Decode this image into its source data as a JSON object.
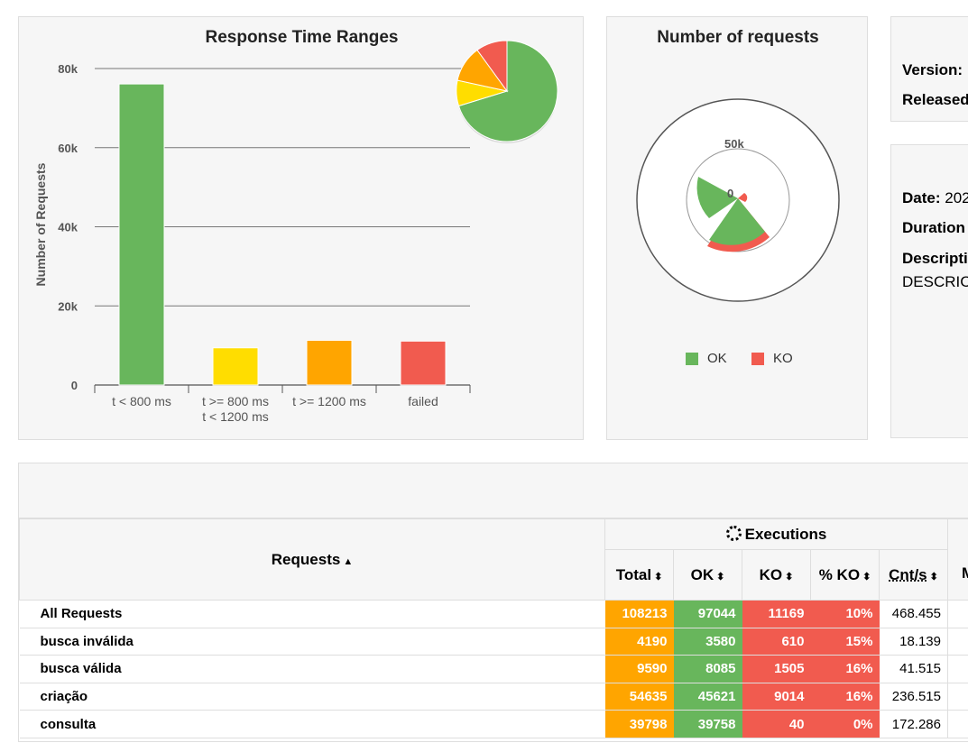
{
  "ranges_chart": {
    "title": "Response Time Ranges",
    "ylabel": "Number of Requests",
    "yticks": [
      "0",
      "20k",
      "40k",
      "60k",
      "80k"
    ],
    "categories": [
      {
        "line1": "t < 800 ms",
        "line2": ""
      },
      {
        "line1": "t >= 800 ms",
        "line2": "t < 1200 ms"
      },
      {
        "line1": "t >= 1200 ms",
        "line2": ""
      },
      {
        "line1": "failed",
        "line2": ""
      }
    ],
    "values": [
      76100,
      9400,
      11300,
      11100
    ],
    "colors": [
      "#68b65c",
      "#ffdd00",
      "#ffa500",
      "#f15b4f"
    ],
    "ylim": [
      0,
      80000
    ]
  },
  "requests_chart": {
    "title": "Number of requests",
    "ticks": [
      "0",
      "50k"
    ],
    "legend": [
      {
        "label": "OK",
        "color": "#68b65c"
      },
      {
        "label": "KO",
        "color": "#f15b4f"
      }
    ]
  },
  "info": {
    "version_label": "Version:",
    "released_label": "Released",
    "date_label": "Date:",
    "date_value": "202",
    "duration_label": "Duration",
    "description_label": "Descripti",
    "description_value": "DESCRIC"
  },
  "table": {
    "requests_header": "Requests",
    "executions_header": "Executions",
    "columns": [
      "Total",
      "OK",
      "KO",
      "% KO",
      "Cnt/s"
    ],
    "next_column": "M",
    "rows": [
      {
        "name": "All Requests",
        "total": "108213",
        "ok": "97044",
        "ko": "11169",
        "pko": "10%",
        "cnt": "468.455"
      },
      {
        "name": "busca inválida",
        "total": "4190",
        "ok": "3580",
        "ko": "610",
        "pko": "15%",
        "cnt": "18.139"
      },
      {
        "name": "busca válida",
        "total": "9590",
        "ok": "8085",
        "ko": "1505",
        "pko": "16%",
        "cnt": "41.515"
      },
      {
        "name": "criação",
        "total": "54635",
        "ok": "45621",
        "ko": "9014",
        "pko": "16%",
        "cnt": "236.515"
      },
      {
        "name": "consulta",
        "total": "39798",
        "ok": "39758",
        "ko": "40",
        "pko": "0%",
        "cnt": "172.286"
      }
    ]
  },
  "chart_data": {
    "type": "bar",
    "title": "Response Time Ranges",
    "categories": [
      "t < 800 ms",
      "t >= 800 ms t < 1200 ms",
      "t >= 1200 ms",
      "failed"
    ],
    "values": [
      76100,
      9400,
      11300,
      11100
    ],
    "xlabel": "",
    "ylabel": "Number of Requests",
    "ylim": [
      0,
      80000
    ]
  }
}
